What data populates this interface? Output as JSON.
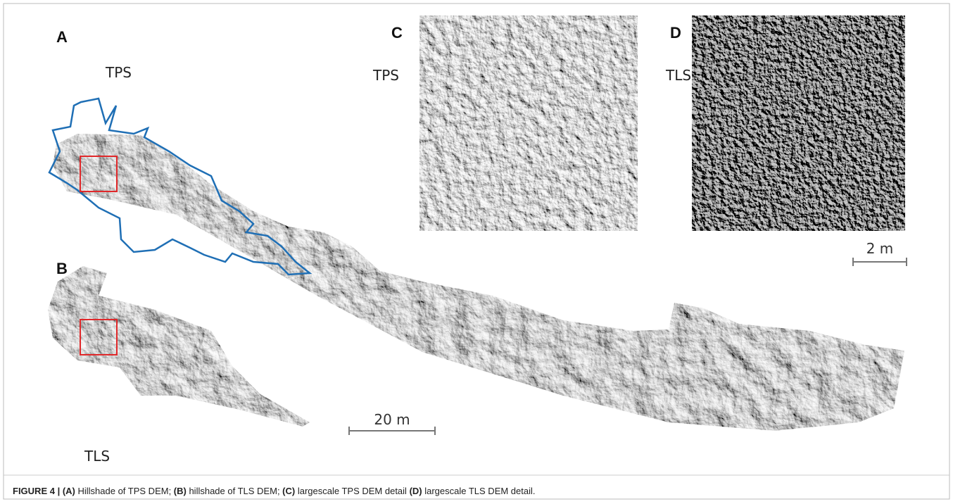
{
  "panels": [
    {
      "letter": "A",
      "label": "TPS"
    },
    {
      "letter": "B",
      "label": "TLS"
    },
    {
      "letter": "C",
      "label": "TPS"
    },
    {
      "letter": "D",
      "label": "TLS"
    }
  ],
  "scale_bars": [
    "20 m",
    "2 m"
  ],
  "caption": [
    {
      "text": "FIGURE 4 | (A)",
      "bold": true
    },
    {
      "text": " Hillshade of TPS DEM; ",
      "bold": false
    },
    {
      "text": "(B)",
      "bold": true
    },
    {
      "text": " hillshade of TLS DEM; ",
      "bold": false
    },
    {
      "text": "(C)",
      "bold": true
    },
    {
      "text": " largescale TPS DEM detail ",
      "bold": false
    },
    {
      "text": "(D)",
      "bold": true
    },
    {
      "text": " largescale TLS DEM detail.",
      "bold": false
    }
  ]
}
